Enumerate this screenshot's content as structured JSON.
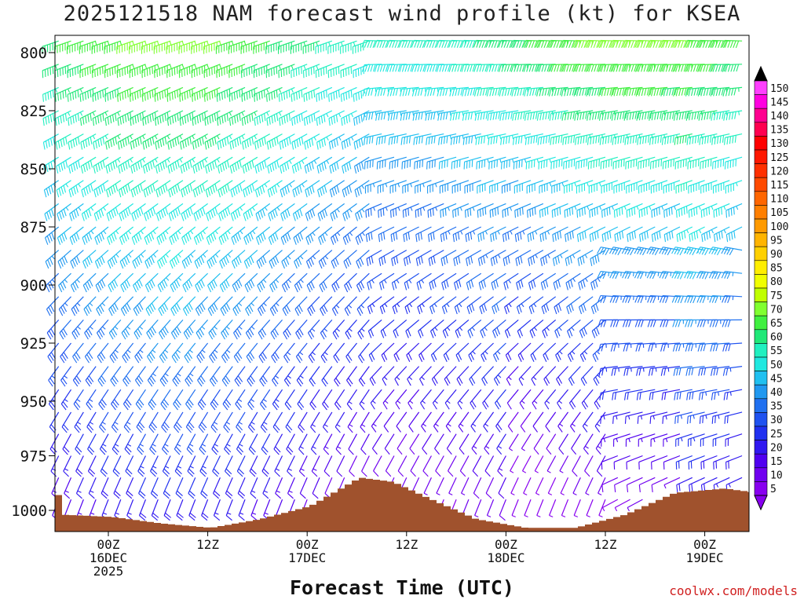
{
  "chart_data": {
    "type": "wind-barb-time-height",
    "title": "2025121518 NAM forecast wind profile (kt) for KSEA",
    "xlabel": "Forecast Time (UTC)",
    "ylabel": "",
    "credit": "coolwx.com/models",
    "y_axis": {
      "ticks": [
        {
          "label": "800",
          "value": 800
        },
        {
          "label": "825",
          "value": 825
        },
        {
          "label": "850",
          "value": 850
        },
        {
          "label": "875",
          "value": 875
        },
        {
          "label": "900",
          "value": 900
        },
        {
          "label": "925",
          "value": 925
        },
        {
          "label": "950",
          "value": 950
        },
        {
          "label": "975",
          "value": 975
        },
        {
          "label": "1000",
          "value": 1000
        }
      ]
    },
    "x_axis": {
      "ticks": [
        {
          "hour": 6,
          "lines": [
            "00Z",
            "16DEC",
            "2025"
          ]
        },
        {
          "hour": 18,
          "lines": [
            "12Z"
          ]
        },
        {
          "hour": 30,
          "lines": [
            "00Z",
            "17DEC"
          ]
        },
        {
          "hour": 42,
          "lines": [
            "12Z"
          ]
        },
        {
          "hour": 54,
          "lines": [
            "00Z",
            "18DEC"
          ]
        },
        {
          "hour": 66,
          "lines": [
            "12Z"
          ]
        },
        {
          "hour": 78,
          "lines": [
            "00Z",
            "19DEC"
          ]
        }
      ]
    },
    "colorbar": {
      "labels": [
        "150",
        "145",
        "140",
        "135",
        "130",
        "125",
        "120",
        "115",
        "110",
        "105",
        "100",
        "95",
        "90",
        "85",
        "80",
        "75",
        "70",
        "65",
        "60",
        "55",
        "50",
        "45",
        "40",
        "35",
        "30",
        "25",
        "20",
        "15",
        "10",
        "5"
      ],
      "colors": [
        "#ff40ff",
        "#ff00e0",
        "#ff0090",
        "#ff0050",
        "#ff0000",
        "#ff1800",
        "#ff3000",
        "#ff4a00",
        "#ff6600",
        "#ff7f00",
        "#ff9a00",
        "#ffb400",
        "#ffd000",
        "#ffee00",
        "#f0ff00",
        "#c0ff00",
        "#80ff30",
        "#40f040",
        "#20e878",
        "#20f0c0",
        "#20e8e0",
        "#20c0f0",
        "#2098f0",
        "#2070f0",
        "#1f52f0",
        "#2030f0",
        "#3018f0",
        "#5000f0",
        "#7000f0",
        "#8800f0"
      ],
      "top_arrow_color": "#000000",
      "bottom_arrow_color": "#8800f0"
    },
    "terrain_color": "#a0522d"
  }
}
